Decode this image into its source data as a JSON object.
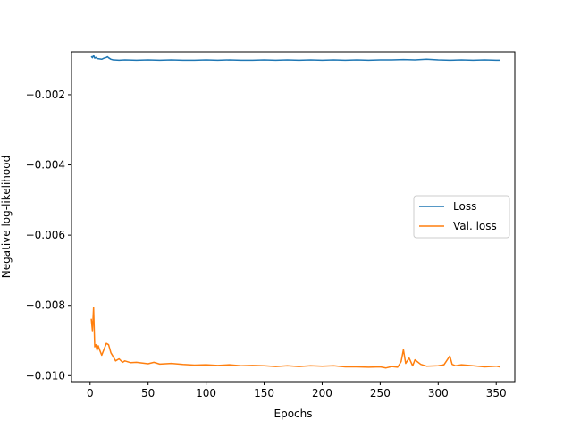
{
  "chart_data": {
    "type": "line",
    "title": "",
    "xlabel": "Epochs",
    "ylabel": "Negative log-likelihood",
    "xlim": [
      -16,
      366
    ],
    "ylim": [
      -0.01017,
      -0.00078
    ],
    "xticks": [
      0,
      50,
      100,
      150,
      200,
      250,
      300,
      350
    ],
    "xtick_labels": [
      "0",
      "50",
      "100",
      "150",
      "200",
      "250",
      "300",
      "350"
    ],
    "yticks": [
      -0.002,
      -0.004,
      -0.006,
      -0.008,
      -0.01
    ],
    "ytick_labels": [
      "−0.002",
      "−0.004",
      "−0.006",
      "−0.008",
      "−0.010"
    ],
    "grid": false,
    "legend_position": "center-right",
    "series": [
      {
        "name": "Loss",
        "color": "#1f77b4",
        "x": [
          1,
          2,
          3,
          4,
          5,
          6,
          8,
          10,
          12,
          14,
          15,
          16,
          18,
          20,
          25,
          30,
          40,
          50,
          60,
          70,
          80,
          90,
          100,
          110,
          120,
          130,
          140,
          150,
          160,
          170,
          180,
          190,
          200,
          210,
          220,
          230,
          240,
          250,
          260,
          270,
          280,
          290,
          300,
          310,
          320,
          330,
          340,
          350,
          353
        ],
        "y": [
          -0.00091,
          -0.00095,
          -0.00088,
          -0.00096,
          -0.00094,
          -0.00097,
          -0.00098,
          -0.00099,
          -0.00096,
          -0.00094,
          -0.00092,
          -0.00095,
          -0.00099,
          -0.00101,
          -0.00102,
          -0.00101,
          -0.00102,
          -0.00101,
          -0.00102,
          -0.00101,
          -0.00102,
          -0.00102,
          -0.00101,
          -0.00102,
          -0.00101,
          -0.00102,
          -0.00102,
          -0.00101,
          -0.00102,
          -0.00101,
          -0.00102,
          -0.00101,
          -0.00102,
          -0.00101,
          -0.00102,
          -0.00101,
          -0.00102,
          -0.00101,
          -0.00101,
          -0.001,
          -0.00101,
          -0.00099,
          -0.00101,
          -0.00102,
          -0.00101,
          -0.00102,
          -0.00101,
          -0.00102,
          -0.00102
        ]
      },
      {
        "name": "Val. loss",
        "color": "#ff7f0e",
        "x": [
          1,
          2,
          3,
          4,
          5,
          6,
          7,
          8,
          10,
          12,
          14,
          16,
          18,
          20,
          22,
          25,
          28,
          30,
          35,
          40,
          50,
          55,
          60,
          70,
          80,
          90,
          100,
          110,
          120,
          130,
          140,
          150,
          160,
          170,
          180,
          190,
          200,
          210,
          220,
          230,
          240,
          250,
          255,
          260,
          265,
          268,
          270,
          272,
          275,
          278,
          280,
          285,
          290,
          300,
          305,
          310,
          312,
          315,
          320,
          330,
          340,
          350,
          353
        ],
        "y": [
          -0.00838,
          -0.00872,
          -0.00806,
          -0.00918,
          -0.00912,
          -0.00928,
          -0.00915,
          -0.00925,
          -0.00942,
          -0.00925,
          -0.00908,
          -0.00912,
          -0.00935,
          -0.00946,
          -0.00958,
          -0.00952,
          -0.00962,
          -0.00958,
          -0.00963,
          -0.00962,
          -0.00966,
          -0.00962,
          -0.00967,
          -0.00965,
          -0.00968,
          -0.0097,
          -0.00969,
          -0.00971,
          -0.00969,
          -0.00972,
          -0.00971,
          -0.00972,
          -0.00974,
          -0.00972,
          -0.00974,
          -0.00972,
          -0.00973,
          -0.00972,
          -0.00975,
          -0.00975,
          -0.00976,
          -0.00975,
          -0.00978,
          -0.00974,
          -0.00976,
          -0.0096,
          -0.00926,
          -0.00965,
          -0.0095,
          -0.00972,
          -0.00955,
          -0.00968,
          -0.00973,
          -0.00972,
          -0.00969,
          -0.00944,
          -0.00968,
          -0.00972,
          -0.00969,
          -0.00972,
          -0.00975,
          -0.00973,
          -0.00975
        ]
      }
    ]
  }
}
